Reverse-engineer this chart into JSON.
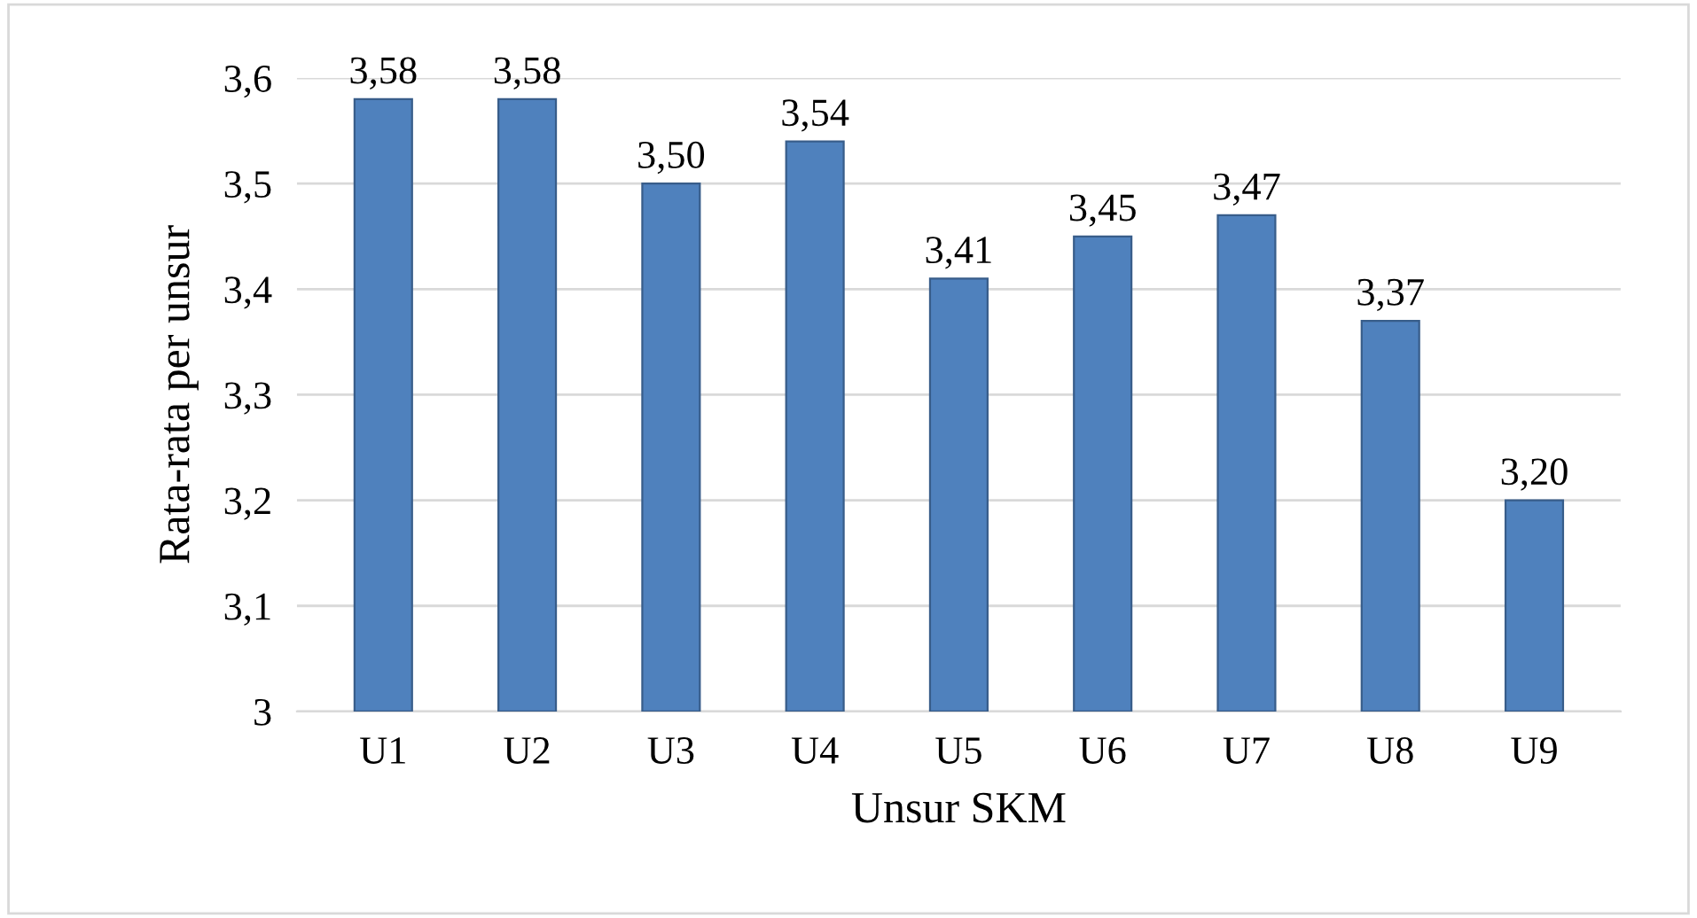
{
  "chart_data": {
    "type": "bar",
    "xlabel": "Unsur SKM",
    "ylabel": "Rata-rata per unsur",
    "categories": [
      "U1",
      "U2",
      "U3",
      "U4",
      "U5",
      "U6",
      "U7",
      "U8",
      "U9"
    ],
    "values": [
      3.58,
      3.58,
      3.5,
      3.54,
      3.41,
      3.45,
      3.47,
      3.37,
      3.2
    ],
    "value_labels": [
      "3,58",
      "3,58",
      "3,50",
      "3,54",
      "3,41",
      "3,45",
      "3,47",
      "3,37",
      "3,20"
    ],
    "color": "#4f81bd",
    "ylim": [
      3,
      3.6
    ],
    "yticks": [
      3,
      {
        "value": 3.1,
        "label": "3,1"
      },
      {
        "value": 3.2,
        "label": "3,2"
      },
      {
        "value": 3.3,
        "label": "3,3"
      },
      {
        "value": 3.4,
        "label": "3,4"
      },
      {
        "value": 3.5,
        "label": "3,5"
      },
      {
        "value": 3.6,
        "label": "3,6"
      }
    ],
    "grid": "y",
    "legend": false
  }
}
